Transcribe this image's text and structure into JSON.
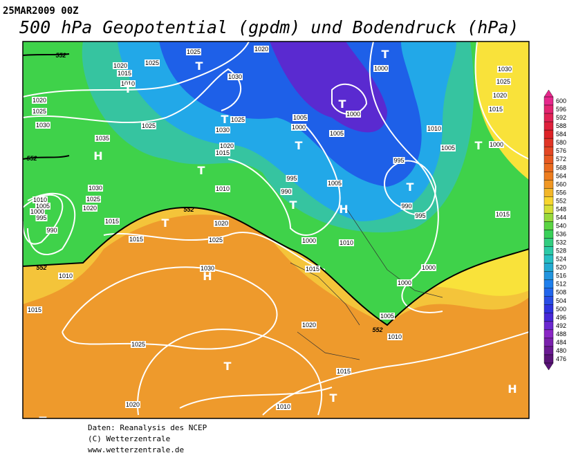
{
  "header": {
    "date": "25MAR2009 00Z",
    "title": "500 hPa Geopotential (gpdm) und Bodendruck (hPa)"
  },
  "map": {
    "isobar_labels": [
      1025,
      1020,
      1020,
      1025,
      1015,
      1010,
      1030,
      1020,
      1025,
      1030,
      1025,
      1035,
      1025,
      1030,
      1020,
      1015,
      1010,
      1005,
      1000,
      1005,
      1000,
      1000,
      1030,
      1025,
      1020,
      1015,
      1010,
      1005,
      1000,
      995,
      995,
      990,
      1005,
      990,
      995,
      1015,
      1030,
      1025,
      1020,
      1015,
      1010,
      1005,
      1000,
      995,
      990,
      1020,
      1025,
      1015,
      1000,
      1010,
      1015,
      1030,
      1010,
      1015,
      1000,
      1000,
      1005,
      1020,
      1010,
      1025,
      1015,
      1020,
      1010
    ],
    "height_labels": [
      552,
      552,
      552,
      552,
      552
    ],
    "centers": [
      "T",
      "T",
      "H",
      "T",
      "T",
      "T",
      "T",
      "T",
      "T",
      "T",
      "H",
      "T",
      "T",
      "H",
      "T",
      "T",
      "H",
      "T"
    ]
  },
  "colorbar": {
    "ticks": [
      600,
      596,
      592,
      588,
      584,
      580,
      576,
      572,
      568,
      564,
      560,
      556,
      552,
      548,
      544,
      540,
      536,
      532,
      528,
      524,
      520,
      516,
      512,
      508,
      504,
      500,
      496,
      492,
      488,
      484,
      480,
      476
    ]
  },
  "footer": {
    "lines": [
      "Daten: Reanalysis des NCEP",
      "(C) Wetterzentrale",
      "www.wetterzentrale.de"
    ]
  }
}
